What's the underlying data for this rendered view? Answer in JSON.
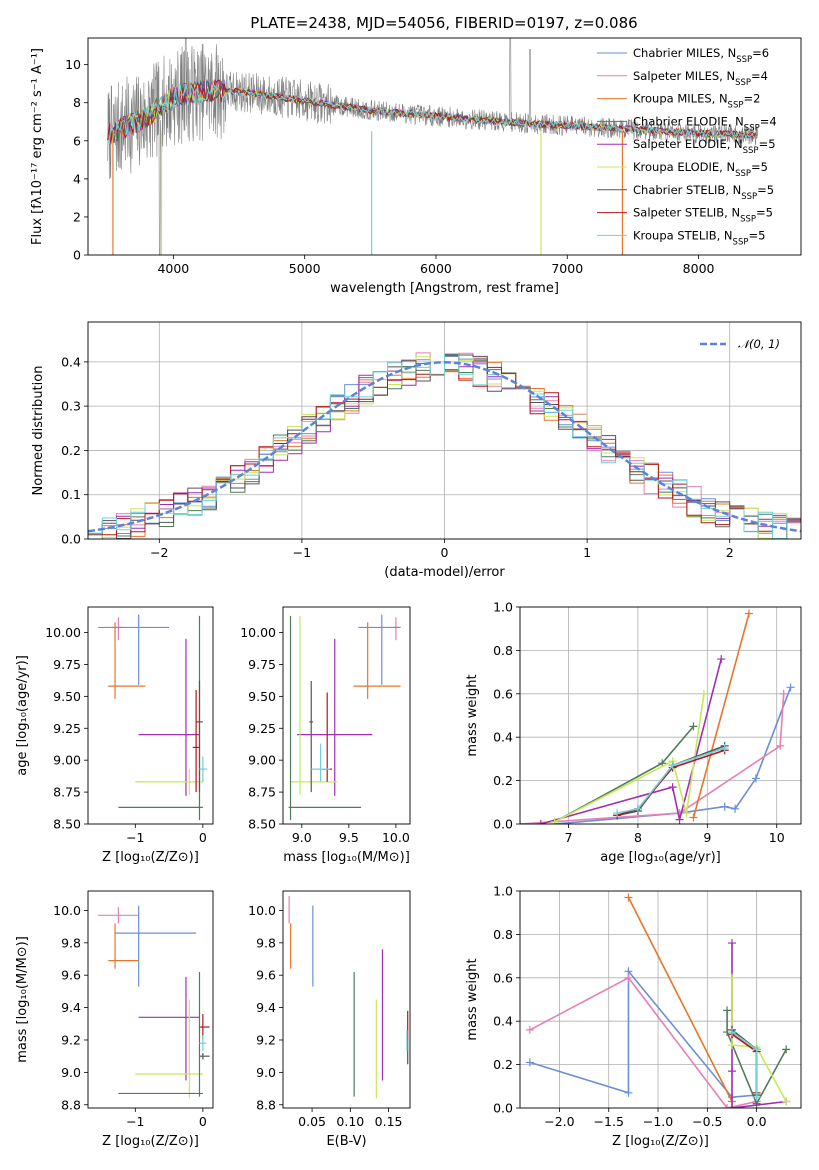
{
  "figure": {
    "title": "PLATE=2438, MJD=54056, FIBERID=0197, z=0.086"
  },
  "chart_data": [
    {
      "id": "spectrum",
      "type": "line",
      "title": "PLATE=2438, MJD=54056, FIBERID=0197, z=0.086",
      "xlabel": "wavelength [Angstrom, rest frame]",
      "ylabel": "Flux [fλ10⁻¹⁷ erg cm⁻² s⁻¹ A⁻¹]",
      "xlim": [
        3350,
        8780
      ],
      "ylim": [
        0,
        11.4
      ],
      "xticks": [
        4000,
        5000,
        6000,
        7000,
        8000
      ],
      "yticks": [
        0,
        2,
        4,
        6,
        8,
        10
      ],
      "grid": false,
      "legend_position": "top-right",
      "series": [
        {
          "name": "Chabrier MILES, N",
          "sub": "SSP",
          "suffix": "=6",
          "color": "#6a8fd8"
        },
        {
          "name": "Salpeter MILES, N",
          "sub": "SSP",
          "suffix": "=4",
          "color": "#e77fb5"
        },
        {
          "name": "Kroupa MILES, N",
          "sub": "SSP",
          "suffix": "=2",
          "color": "#e8762a"
        },
        {
          "name": "Chabrier ELODIE, N",
          "sub": "SSP",
          "suffix": "=4",
          "color": "#4f7c5a"
        },
        {
          "name": "Salpeter ELODIE, N",
          "sub": "SSP",
          "suffix": "=5",
          "color": "#9e2fb3"
        },
        {
          "name": "Kroupa ELODIE, N",
          "sub": "SSP",
          "suffix": "=5",
          "color": "#c7e85a"
        },
        {
          "name": "Chabrier STELIB, N",
          "sub": "SSP",
          "suffix": "=5",
          "color": "#555555"
        },
        {
          "name": "Salpeter STELIB, N",
          "sub": "SSP",
          "suffix": "=5",
          "color": "#b3171a"
        },
        {
          "name": "Kroupa STELIB, N",
          "sub": "SSP",
          "suffix": "=5",
          "color": "#6fd2d8"
        }
      ],
      "data_color": "#808080",
      "continuum": {
        "x": [
          3500,
          3650,
          3800,
          4000,
          4200,
          4500,
          5000,
          5500,
          6000,
          6500,
          7000,
          7500,
          8000,
          8400
        ],
        "y": [
          6.3,
          6.8,
          7.2,
          8.3,
          8.6,
          8.6,
          8.1,
          7.6,
          7.3,
          7.0,
          6.8,
          6.6,
          6.4,
          6.3
        ]
      }
    },
    {
      "id": "residuals",
      "type": "histogram",
      "xlabel": "(data-model)/error",
      "ylabel": "Normed distribution",
      "xlim": [
        -2.5,
        2.5
      ],
      "ylim": [
        0,
        0.49
      ],
      "xticks": [
        -2,
        -1,
        0,
        1,
        2
      ],
      "yticks": [
        0.0,
        0.1,
        0.2,
        0.3,
        0.4
      ],
      "grid": true,
      "legend_position": "top-right",
      "reference": {
        "name": "𝒩(0, 1)",
        "color": "#5b84d9",
        "mean": 0,
        "sigma": 1
      },
      "bin_width": 0.1
    },
    {
      "id": "age-vs-z",
      "type": "scatter",
      "xlabel": "Z [log₁₀(Z/Z⊙)]",
      "ylabel": "age  [log₁₀(age/yr)]",
      "xlim": [
        -1.7,
        0.15
      ],
      "ylim": [
        8.5,
        10.2
      ],
      "xticks": [
        -1,
        0
      ],
      "yticks": [
        8.5,
        8.75,
        9.0,
        9.25,
        9.5,
        9.75,
        10.0
      ],
      "grid": false,
      "errorbars": [
        {
          "color": "#e77fb5",
          "x": -1.25,
          "xerr": [
            0.1,
            0.05
          ],
          "y": 10.04,
          "yerr": [
            0.1,
            0.08
          ]
        },
        {
          "color": "#6a8fd8",
          "x": -0.95,
          "xerr": [
            0.6,
            0.45
          ],
          "y": 10.04,
          "yerr": [
            0.45,
            0.1
          ]
        },
        {
          "color": "#e8762a",
          "x": -1.3,
          "xerr": [
            0.1,
            0.45
          ],
          "y": 9.58,
          "yerr": [
            0.1,
            0.5
          ]
        },
        {
          "color": "#9e2fb3",
          "x": -0.25,
          "xerr": [
            0.7,
            0.2
          ],
          "y": 9.2,
          "yerr": [
            0.48,
            0.75
          ]
        },
        {
          "color": "#c7e85a",
          "x": -0.2,
          "xerr": [
            0.8,
            0.2
          ],
          "y": 8.83,
          "yerr": [
            0.1,
            0.1
          ]
        },
        {
          "color": "#4f7c5a",
          "x": -0.05,
          "xerr": [
            1.2,
            0.05
          ],
          "y": 8.63,
          "yerr": [
            0.1,
            1.5
          ]
        },
        {
          "color": "#555555",
          "x": -0.05,
          "xerr": [
            0.05,
            0.05
          ],
          "y": 9.3,
          "yerr": [
            0.55,
            0.32
          ]
        },
        {
          "color": "#b3171a",
          "x": -0.1,
          "xerr": [
            0.05,
            0.05
          ],
          "y": 9.1,
          "yerr": [
            0.35,
            0.45
          ]
        },
        {
          "color": "#6fd2d8",
          "x": 0.0,
          "xerr": [
            0.05,
            0.06
          ],
          "y": 8.93,
          "yerr": [
            0.1,
            0.1
          ]
        }
      ]
    },
    {
      "id": "age-vs-mass",
      "type": "scatter",
      "xlabel": "mass [log₁₀(M/M⊙)]",
      "ylabel": "",
      "xlim": [
        8.8,
        10.15
      ],
      "ylim": [
        8.5,
        10.2
      ],
      "xticks": [
        9.0,
        9.5,
        10.0
      ],
      "yticks": [
        8.5,
        8.75,
        9.0,
        9.25,
        9.5,
        9.75,
        10.0
      ],
      "grid": false,
      "errorbars": [
        {
          "color": "#e77fb5",
          "x": 10.0,
          "xerr": [
            0.05,
            0.05
          ],
          "y": 10.04,
          "yerr": [
            0.1,
            0.08
          ]
        },
        {
          "color": "#6a8fd8",
          "x": 9.85,
          "xerr": [
            0.25,
            0.2
          ],
          "y": 10.04,
          "yerr": [
            0.45,
            0.1
          ]
        },
        {
          "color": "#e8762a",
          "x": 9.7,
          "xerr": [
            0.15,
            0.35
          ],
          "y": 9.58,
          "yerr": [
            0.1,
            0.5
          ]
        },
        {
          "color": "#9e2fb3",
          "x": 9.35,
          "xerr": [
            0.4,
            0.4
          ],
          "y": 9.2,
          "yerr": [
            0.48,
            0.75
          ]
        },
        {
          "color": "#c7e85a",
          "x": 8.98,
          "xerr": [
            0.1,
            0.4
          ],
          "y": 8.83,
          "yerr": [
            0.1,
            1.3
          ]
        },
        {
          "color": "#4f7c5a",
          "x": 8.88,
          "xerr": [
            0.02,
            0.75
          ],
          "y": 8.63,
          "yerr": [
            0.1,
            1.5
          ]
        },
        {
          "color": "#555555",
          "x": 9.1,
          "xerr": [
            0.02,
            0.02
          ],
          "y": 9.3,
          "yerr": [
            0.55,
            0.32
          ]
        },
        {
          "color": "#b3171a",
          "x": 9.27,
          "xerr": [
            0.05,
            0.05
          ],
          "y": 8.93,
          "yerr": [
            0.1,
            0.6
          ]
        },
        {
          "color": "#6fd2d8",
          "x": 9.2,
          "xerr": [
            0.1,
            0.1
          ],
          "y": 8.93,
          "yerr": [
            0.1,
            0.2
          ]
        }
      ]
    },
    {
      "id": "weight-vs-age",
      "type": "line",
      "xlabel": "age  [log₁₀(age/yr)]",
      "ylabel": "mass weight",
      "xlim": [
        6.3,
        10.35
      ],
      "ylim": [
        0,
        1.0
      ],
      "xticks": [
        7,
        8,
        9,
        10
      ],
      "yticks": [
        0.0,
        0.2,
        0.4,
        0.6,
        0.8,
        1.0
      ],
      "grid": true,
      "series": [
        {
          "color": "#6a8fd8",
          "x": [
            6.8,
            8.6,
            9.25,
            9.4,
            9.7,
            10.2
          ],
          "y": [
            0.0,
            0.05,
            0.08,
            0.07,
            0.21,
            0.63
          ]
        },
        {
          "color": "#e77fb5",
          "x": [
            6.3,
            8.6,
            10.05,
            10.1
          ],
          "y": [
            0.0,
            0.05,
            0.36,
            0.6
          ]
        },
        {
          "color": "#e8762a",
          "x": [
            8.8,
            9.6
          ],
          "y": [
            0.03,
            0.97
          ]
        },
        {
          "color": "#4f7c5a",
          "x": [
            6.8,
            8.35,
            8.8
          ],
          "y": [
            0.01,
            0.28,
            0.45
          ]
        },
        {
          "color": "#9e2fb3",
          "x": [
            6.6,
            8.5,
            8.6,
            9.2
          ],
          "y": [
            0.0,
            0.17,
            0.02,
            0.76
          ]
        },
        {
          "color": "#c7e85a",
          "x": [
            6.8,
            8.5,
            8.7,
            8.95
          ],
          "y": [
            0.01,
            0.29,
            0.05,
            0.6
          ]
        },
        {
          "color": "#555555",
          "x": [
            7.7,
            8.0,
            8.5,
            9.25
          ],
          "y": [
            0.04,
            0.06,
            0.27,
            0.36
          ]
        },
        {
          "color": "#b3171a",
          "x": [
            7.7,
            8.0,
            8.5,
            9.25
          ],
          "y": [
            0.04,
            0.07,
            0.26,
            0.34
          ]
        },
        {
          "color": "#6fd2d8",
          "x": [
            7.7,
            8.0,
            8.5,
            9.25
          ],
          "y": [
            0.05,
            0.07,
            0.27,
            0.35
          ]
        }
      ]
    },
    {
      "id": "mass-vs-z",
      "type": "scatter",
      "xlabel": "Z [log₁₀(Z/Z⊙)]",
      "ylabel": "mass [log₁₀(M/M⊙)]",
      "xlim": [
        -1.7,
        0.15
      ],
      "ylim": [
        8.78,
        10.12
      ],
      "xticks": [
        -1,
        0
      ],
      "yticks": [
        8.8,
        9.0,
        9.2,
        9.4,
        9.6,
        9.8,
        10.0
      ],
      "grid": false,
      "errorbars": [
        {
          "color": "#e77fb5",
          "x": -1.25,
          "xerr": [
            0.3,
            0.3
          ],
          "y": 9.97,
          "yerr": [
            0.05,
            0.05
          ]
        },
        {
          "color": "#6a8fd8",
          "x": -0.95,
          "xerr": [
            0.35,
            0.85
          ],
          "y": 9.86,
          "yerr": [
            0.33,
            0.17
          ]
        },
        {
          "color": "#e8762a",
          "x": -1.3,
          "xerr": [
            0.1,
            0.35
          ],
          "y": 9.69,
          "yerr": [
            0.05,
            0.23
          ]
        },
        {
          "color": "#9e2fb3",
          "x": -0.25,
          "xerr": [
            0.7,
            0.2
          ],
          "y": 9.34,
          "yerr": [
            0.39,
            0.25
          ]
        },
        {
          "color": "#c7e85a",
          "x": -0.2,
          "xerr": [
            0.8,
            0.2
          ],
          "y": 8.99,
          "yerr": [
            0.15,
            0.46
          ]
        },
        {
          "color": "#4f7c5a",
          "x": -0.05,
          "xerr": [
            1.2,
            0.05
          ],
          "y": 8.87,
          "yerr": [
            0.02,
            0.75
          ]
        },
        {
          "color": "#555555",
          "x": 0.0,
          "xerr": [
            0.05,
            0.1
          ],
          "y": 9.1,
          "yerr": [
            0.02,
            0.02
          ]
        },
        {
          "color": "#b3171a",
          "x": 0.0,
          "xerr": [
            0.05,
            0.1
          ],
          "y": 9.28,
          "yerr": [
            0.08,
            0.08
          ]
        },
        {
          "color": "#6fd2d8",
          "x": 0.0,
          "xerr": [
            0.05,
            0.05
          ],
          "y": 9.18,
          "yerr": [
            0.05,
            0.05
          ]
        }
      ]
    },
    {
      "id": "mass-vs-ebv",
      "type": "scatter",
      "xlabel": "E(B-V)",
      "ylabel": "",
      "xlim": [
        0.012,
        0.178
      ],
      "ylim": [
        8.78,
        10.12
      ],
      "xticks": [
        0.05,
        0.1,
        0.15
      ],
      "yticks": [
        8.8,
        9.0,
        9.2,
        9.4,
        9.6,
        9.8,
        10.0
      ],
      "grid": false,
      "errorbars": [
        {
          "color": "#e77fb5",
          "x": 0.02,
          "yerr": [
            0.05,
            0.12
          ],
          "y": 9.97
        },
        {
          "color": "#6a8fd8",
          "x": 0.051,
          "yerr": [
            0.33,
            0.17
          ],
          "y": 9.86
        },
        {
          "color": "#e8762a",
          "x": 0.022,
          "yerr": [
            0.05,
            0.23
          ],
          "y": 9.69
        },
        {
          "color": "#9e2fb3",
          "x": 0.142,
          "yerr": [
            0.39,
            0.42
          ],
          "y": 9.34
        },
        {
          "color": "#c7e85a",
          "x": 0.134,
          "yerr": [
            0.15,
            0.46
          ],
          "y": 8.99
        },
        {
          "color": "#4f7c5a",
          "x": 0.105,
          "yerr": [
            0.02,
            0.75
          ],
          "y": 8.87
        },
        {
          "color": "#555555",
          "x": 0.175,
          "yerr": [
            0.05,
            0.1
          ],
          "y": 9.1
        },
        {
          "color": "#b3171a",
          "x": 0.175,
          "yerr": [
            0.08,
            0.1
          ],
          "y": 9.28
        },
        {
          "color": "#6fd2d8",
          "x": 0.174,
          "yerr": [
            0.05,
            0.08
          ],
          "y": 9.18
        }
      ]
    },
    {
      "id": "weight-vs-z",
      "type": "line",
      "xlabel": "Z [log₁₀(Z/Z⊙)]",
      "ylabel": "mass weight",
      "xlim": [
        -2.4,
        0.45
      ],
      "ylim": [
        0,
        1.0
      ],
      "xticks": [
        -2.0,
        -1.5,
        -1.0,
        -0.5,
        0.0
      ],
      "yticks": [
        0.0,
        0.2,
        0.4,
        0.6,
        0.8,
        1.0
      ],
      "grid": true,
      "series": [
        {
          "color": "#6a8fd8",
          "x": [
            -2.3,
            -1.3,
            -1.3,
            -0.25,
            0.0,
            0.0
          ],
          "y": [
            0.21,
            0.07,
            0.63,
            0.05,
            0.06,
            0.27
          ]
        },
        {
          "color": "#e77fb5",
          "x": [
            -2.3,
            -1.3,
            -0.3,
            0.0
          ],
          "y": [
            0.36,
            0.6,
            0.0,
            0.03
          ]
        },
        {
          "color": "#e8762a",
          "x": [
            -1.3,
            -0.25
          ],
          "y": [
            0.97,
            0.03
          ]
        },
        {
          "color": "#4f7c5a",
          "x": [
            -0.3,
            -0.3,
            0.0,
            0.3
          ],
          "y": [
            0.45,
            0.35,
            0.02,
            0.27
          ]
        },
        {
          "color": "#9e2fb3",
          "x": [
            -0.25,
            -0.25,
            -0.25,
            0.3
          ],
          "y": [
            0.76,
            0.17,
            0.0,
            0.03
          ]
        },
        {
          "color": "#c7e85a",
          "x": [
            -0.25,
            -0.25,
            0.0,
            0.3
          ],
          "y": [
            0.6,
            0.29,
            0.28,
            0.03
          ]
        },
        {
          "color": "#555555",
          "x": [
            -0.25,
            0.0,
            0.0
          ],
          "y": [
            0.36,
            0.27,
            0.06
          ]
        },
        {
          "color": "#b3171a",
          "x": [
            -0.25,
            0.0,
            0.0
          ],
          "y": [
            0.34,
            0.26,
            0.07
          ]
        },
        {
          "color": "#6fd2d8",
          "x": [
            -0.25,
            0.0,
            0.0
          ],
          "y": [
            0.35,
            0.27,
            0.05
          ]
        }
      ]
    }
  ]
}
